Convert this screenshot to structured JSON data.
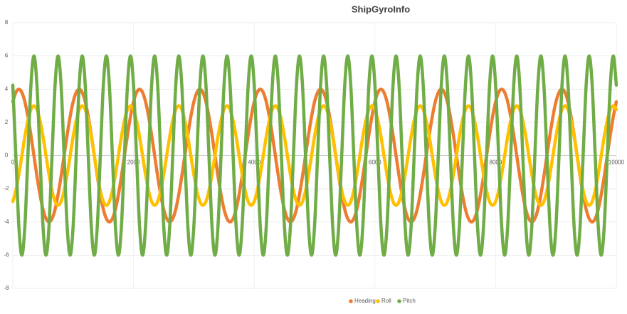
{
  "chart_data": {
    "type": "line",
    "title": "ShipGyroInfo",
    "x": [
      0,
      50,
      100,
      150,
      200,
      250,
      300,
      350,
      400,
      450,
      500,
      550,
      600,
      650,
      700,
      750,
      800,
      850,
      900,
      950,
      1000,
      1050,
      1100,
      1150,
      1200,
      1250,
      1300,
      1350,
      1400,
      1450,
      1500,
      1550,
      1600,
      1650,
      1700,
      1750,
      1800,
      1850,
      1900,
      1950,
      2000,
      2050,
      2100,
      2150,
      2200,
      2250,
      2300,
      2350,
      2400,
      2450,
      2500,
      2550,
      2600,
      2650,
      2700,
      2750,
      2800,
      2850,
      2900,
      2950,
      3000,
      3050,
      3100,
      3150,
      3200,
      3250,
      3300,
      3350,
      3400,
      3450,
      3500,
      3550,
      3600,
      3650,
      3700,
      3750,
      3800,
      3850,
      3900,
      3950,
      4000,
      4050,
      4100,
      4150,
      4200,
      4250,
      4300,
      4350,
      4400,
      4450,
      4500,
      4550,
      4600,
      4650,
      4700,
      4750,
      4800,
      4850,
      4900,
      4950,
      5000,
      5050,
      5100,
      5150,
      5200,
      5250,
      5300,
      5350,
      5400,
      5450,
      5500,
      5550,
      5600,
      5650,
      5700,
      5750,
      5800,
      5850,
      5900,
      5950,
      6000,
      6050,
      6100,
      6150,
      6200,
      6250,
      6300,
      6350,
      6400,
      6450,
      6500,
      6550,
      6600,
      6650,
      6700,
      6750,
      6800,
      6850,
      6900,
      6950,
      7000,
      7050,
      7100,
      7150,
      7200,
      7250,
      7300,
      7350,
      7400,
      7450,
      7500,
      7550,
      7600,
      7650,
      7700,
      7750,
      7800,
      7850,
      7900,
      7950,
      8000,
      8050,
      8100,
      8150,
      8200,
      8250,
      8300,
      8350,
      8400,
      8450,
      8500,
      8550,
      8600,
      8650,
      8700,
      8750,
      8800,
      8850,
      8900,
      8950,
      9000,
      9050,
      9100,
      9150,
      9200,
      9250,
      9300,
      9350,
      9400,
      9450,
      9500,
      9550,
      9600,
      9650,
      9700,
      9750,
      9800,
      9850,
      9900,
      9950,
      10000
    ],
    "series": [
      {
        "name": "Heading",
        "color": "#ed7d31",
        "values": [
          3.24,
          3.8,
          4,
          3.8,
          3.24,
          2.35,
          1.24,
          0,
          -1.24,
          -2.35,
          -3.24,
          -3.8,
          -4,
          -3.8,
          -3.24,
          -2.35,
          -1.24,
          0,
          1.24,
          2.35,
          3.24,
          3.8,
          4,
          3.8,
          3.24,
          2.35,
          1.24,
          0,
          -1.24,
          -2.35,
          -3.24,
          -3.8,
          -4,
          -3.8,
          -3.24,
          -2.35,
          -1.24,
          0,
          1.24,
          2.35,
          3.24,
          3.8,
          4,
          3.8,
          3.24,
          2.35,
          1.24,
          0,
          -1.24,
          -2.35,
          -3.24,
          -3.8,
          -4,
          -3.8,
          -3.24,
          -2.35,
          -1.24,
          0,
          1.24,
          2.35,
          3.24,
          3.8,
          4,
          3.8,
          3.24,
          2.35,
          1.24,
          0,
          -1.24,
          -2.35,
          -3.24,
          -3.8,
          -4,
          -3.8,
          -3.24,
          -2.35,
          -1.24,
          0,
          1.24,
          2.35,
          3.24,
          3.8,
          4,
          3.8,
          3.24,
          2.35,
          1.24,
          0,
          -1.24,
          -2.35,
          -3.24,
          -3.8,
          -4,
          -3.8,
          -3.24,
          -2.35,
          -1.24,
          0,
          1.24,
          2.35,
          3.24,
          3.8,
          4,
          3.8,
          3.24,
          2.35,
          1.24,
          0,
          -1.24,
          -2.35,
          -3.24,
          -3.8,
          -4,
          -3.8,
          -3.24,
          -2.35,
          -1.24,
          0,
          1.24,
          2.35,
          3.24,
          3.8,
          4,
          3.8,
          3.24,
          2.35,
          1.24,
          0,
          -1.24,
          -2.35,
          -3.24,
          -3.8,
          -4,
          -3.8,
          -3.24,
          -2.35,
          -1.24,
          0,
          1.24,
          2.35,
          3.24,
          3.8,
          4,
          3.8,
          3.24,
          2.35,
          1.24,
          0,
          -1.24,
          -2.35,
          -3.24,
          -3.8,
          -4,
          -3.8,
          -3.24,
          -2.35,
          -1.24,
          0,
          1.24,
          2.35,
          3.24,
          3.8,
          4,
          3.8,
          3.24,
          2.35,
          1.24,
          0,
          -1.24,
          -2.35,
          -3.24,
          -3.8,
          -4,
          -3.8,
          -3.24,
          -2.35,
          -1.24,
          0,
          1.24,
          2.35,
          3.24,
          3.8,
          4,
          3.8,
          3.24,
          2.35,
          1.24,
          0,
          -1.24,
          -2.35,
          -3.24,
          -3.8,
          -4,
          -3.8,
          -3.24,
          -2.35,
          -1.24,
          0,
          1.24,
          2.35,
          3.24
        ]
      },
      {
        "name": "Roll",
        "color": "#ffc000",
        "values": [
          -2.77,
          -2.12,
          -1.15,
          0,
          1.15,
          2.12,
          2.77,
          3,
          2.77,
          2.12,
          1.15,
          0,
          -1.15,
          -2.12,
          -2.77,
          -3,
          -2.77,
          -2.12,
          -1.15,
          0,
          1.15,
          2.12,
          2.77,
          3,
          2.77,
          2.12,
          1.15,
          0,
          -1.15,
          -2.12,
          -2.77,
          -3,
          -2.77,
          -2.12,
          -1.15,
          0,
          1.15,
          2.12,
          2.77,
          3,
          2.77,
          2.12,
          1.15,
          0,
          -1.15,
          -2.12,
          -2.77,
          -3,
          -2.77,
          -2.12,
          -1.15,
          0,
          1.15,
          2.12,
          2.77,
          3,
          2.77,
          2.12,
          1.15,
          0,
          -1.15,
          -2.12,
          -2.77,
          -3,
          -2.77,
          -2.12,
          -1.15,
          0,
          1.15,
          2.12,
          2.77,
          3,
          2.77,
          2.12,
          1.15,
          0,
          -1.15,
          -2.12,
          -2.77,
          -3,
          -2.77,
          -2.12,
          -1.15,
          0,
          1.15,
          2.12,
          2.77,
          3,
          2.77,
          2.12,
          1.15,
          0,
          -1.15,
          -2.12,
          -2.77,
          -3,
          -2.77,
          -2.12,
          -1.15,
          0,
          1.15,
          2.12,
          2.77,
          3,
          2.77,
          2.12,
          1.15,
          0,
          -1.15,
          -2.12,
          -2.77,
          -3,
          -2.77,
          -2.12,
          -1.15,
          0,
          1.15,
          2.12,
          2.77,
          3,
          2.77,
          2.12,
          1.15,
          0,
          -1.15,
          -2.12,
          -2.77,
          -3,
          -2.77,
          -2.12,
          -1.15,
          0,
          1.15,
          2.12,
          2.77,
          3,
          2.77,
          2.12,
          1.15,
          0,
          -1.15,
          -2.12,
          -2.77,
          -3,
          -2.77,
          -2.12,
          -1.15,
          0,
          1.15,
          2.12,
          2.77,
          3,
          2.77,
          2.12,
          1.15,
          0,
          -1.15,
          -2.12,
          -2.77,
          -3,
          -2.77,
          -2.12,
          -1.15,
          0,
          1.15,
          2.12,
          2.77,
          3,
          2.77,
          2.12,
          1.15,
          0,
          -1.15,
          -2.12,
          -2.77,
          -3,
          -2.77,
          -2.12,
          -1.15,
          0,
          1.15,
          2.12,
          2.77,
          3,
          2.77,
          2.12,
          1.15,
          0,
          -1.15,
          -2.12,
          -2.77,
          -3,
          -2.77,
          -2.12,
          -1.15,
          0,
          1.15,
          2.12,
          2.77,
          3,
          2.77
        ]
      },
      {
        "name": "Pitch",
        "color": "#70ad47",
        "values": [
          4.24,
          0,
          -4.24,
          -6,
          -4.24,
          0,
          4.24,
          6,
          4.24,
          0,
          -4.24,
          -6,
          -4.24,
          0,
          4.24,
          6,
          4.24,
          0,
          -4.24,
          -6,
          -4.24,
          0,
          4.24,
          6,
          4.24,
          0,
          -4.24,
          -6,
          -4.24,
          0,
          4.24,
          6,
          4.24,
          0,
          -4.24,
          -6,
          -4.24,
          0,
          4.24,
          6,
          4.24,
          0,
          -4.24,
          -6,
          -4.24,
          0,
          4.24,
          6,
          4.24,
          0,
          -4.24,
          -6,
          -4.24,
          0,
          4.24,
          6,
          4.24,
          0,
          -4.24,
          -6,
          -4.24,
          0,
          4.24,
          6,
          4.24,
          0,
          -4.24,
          -6,
          -4.24,
          0,
          4.24,
          6,
          4.24,
          0,
          -4.24,
          -6,
          -4.24,
          0,
          4.24,
          6,
          4.24,
          0,
          -4.24,
          -6,
          -4.24,
          0,
          4.24,
          6,
          4.24,
          0,
          -4.24,
          -6,
          -4.24,
          0,
          4.24,
          6,
          4.24,
          0,
          -4.24,
          -6,
          -4.24,
          0,
          4.24,
          6,
          4.24,
          0,
          -4.24,
          -6,
          -4.24,
          0,
          4.24,
          6,
          4.24,
          0,
          -4.24,
          -6,
          -4.24,
          0,
          4.24,
          6,
          4.24,
          0,
          -4.24,
          -6,
          -4.24,
          0,
          4.24,
          6,
          4.24,
          0,
          -4.24,
          -6,
          -4.24,
          0,
          4.24,
          6,
          4.24,
          0,
          -4.24,
          -6,
          -4.24,
          0,
          4.24,
          6,
          4.24,
          0,
          -4.24,
          -6,
          -4.24,
          0,
          4.24,
          6,
          4.24,
          0,
          -4.24,
          -6,
          -4.24,
          0,
          4.24,
          6,
          4.24,
          0,
          -4.24,
          -6,
          -4.24,
          0,
          4.24,
          6,
          4.24,
          0,
          -4.24,
          -6,
          -4.24,
          0,
          4.24,
          6,
          4.24,
          0,
          -4.24,
          -6,
          -4.24,
          0,
          4.24,
          6,
          4.24,
          0,
          -4.24,
          -6,
          -4.24,
          0,
          4.24,
          6,
          4.24,
          0,
          -4.24,
          -6,
          -4.24,
          0,
          4.24,
          6,
          4.24
        ]
      }
    ],
    "xlim": [
      0,
      10000
    ],
    "xticks": [
      0,
      2000,
      4000,
      6000,
      8000,
      10000
    ],
    "ylim": [
      -8,
      8
    ],
    "yticks": [
      -8,
      -6,
      -4,
      -2,
      0,
      2,
      4,
      6,
      8
    ],
    "grid": true,
    "legend": "bottom"
  }
}
